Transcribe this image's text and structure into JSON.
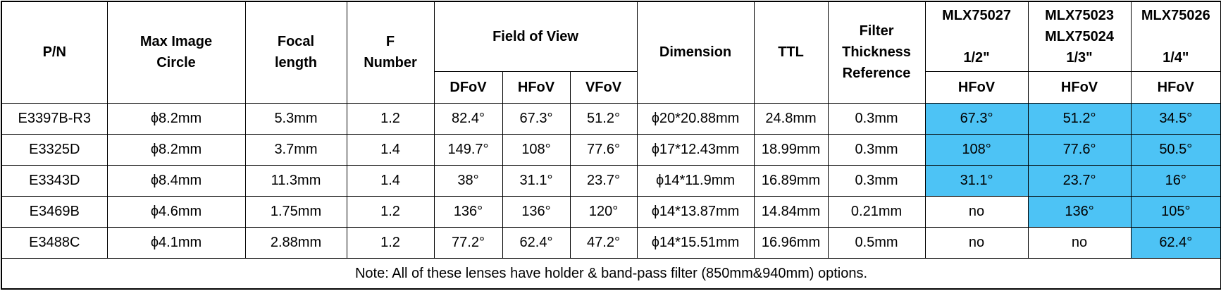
{
  "headers": {
    "pn": "P/N",
    "max_image_circle": [
      "Max Image",
      "Circle"
    ],
    "focal_length": [
      "Focal",
      "length"
    ],
    "f_number": [
      "F",
      "Number"
    ],
    "field_of_view": "Field of View",
    "dimension": "Dimension",
    "ttl": "TTL",
    "filter": [
      "Filter",
      "Thickness",
      "Reference"
    ],
    "sensor1": [
      "MLX75027",
      "",
      "1/2\""
    ],
    "sensor2": [
      "MLX75023",
      "MLX75024",
      "1/3\""
    ],
    "sensor3": [
      "MLX75026",
      "",
      "1/4\""
    ],
    "dfov": "DFoV",
    "hfov": "HFoV",
    "vfov": "VFoV",
    "s1_hfov": "HFoV",
    "s2_hfov": "HFoV",
    "s3_hfov": "HFoV"
  },
  "rows": [
    {
      "pn": "E3397B-R3",
      "mic": "ϕ8.2mm",
      "fl": "5.3mm",
      "fn": "1.2",
      "dfov": "82.4°",
      "hfov": "67.3°",
      "vfov": "51.2°",
      "dim": "ϕ20*20.88mm",
      "ttl": "24.8mm",
      "filter": "0.3mm",
      "s1": "67.3°",
      "s2": "51.2°",
      "s3": "34.5°"
    },
    {
      "pn": "E3325D",
      "mic": "ϕ8.2mm",
      "fl": "3.7mm",
      "fn": "1.4",
      "dfov": "149.7°",
      "hfov": "108°",
      "vfov": "77.6°",
      "dim": "ϕ17*12.43mm",
      "ttl": "18.99mm",
      "filter": "0.3mm",
      "s1": "108°",
      "s2": "77.6°",
      "s3": "50.5°"
    },
    {
      "pn": "E3343D",
      "mic": "ϕ8.4mm",
      "fl": "11.3mm",
      "fn": "1.4",
      "dfov": "38°",
      "hfov": "31.1°",
      "vfov": "23.7°",
      "dim": "ϕ14*11.9mm",
      "ttl": "16.89mm",
      "filter": "0.3mm",
      "s1": "31.1°",
      "s2": "23.7°",
      "s3": "16°"
    },
    {
      "pn": "E3469B",
      "mic": "ϕ4.6mm",
      "fl": "1.75mm",
      "fn": "1.2",
      "dfov": "136°",
      "hfov": "136°",
      "vfov": "120°",
      "dim": "ϕ14*13.87mm",
      "ttl": "14.84mm",
      "filter": "0.21mm",
      "s1": "no",
      "s2": "136°",
      "s3": "105°"
    },
    {
      "pn": "E3488C",
      "mic": "ϕ4.1mm",
      "fl": "2.88mm",
      "fn": "1.2",
      "dfov": "77.2°",
      "hfov": "62.4°",
      "vfov": "47.2°",
      "dim": "ϕ14*15.51mm",
      "ttl": "16.96mm",
      "filter": "0.5mm",
      "s1": "no",
      "s2": "no",
      "s3": "62.4°"
    }
  ],
  "highlight_color": "#4dc3f5",
  "note": "Note: All of these lenses have holder & band-pass filter (850mm&940mm) options."
}
